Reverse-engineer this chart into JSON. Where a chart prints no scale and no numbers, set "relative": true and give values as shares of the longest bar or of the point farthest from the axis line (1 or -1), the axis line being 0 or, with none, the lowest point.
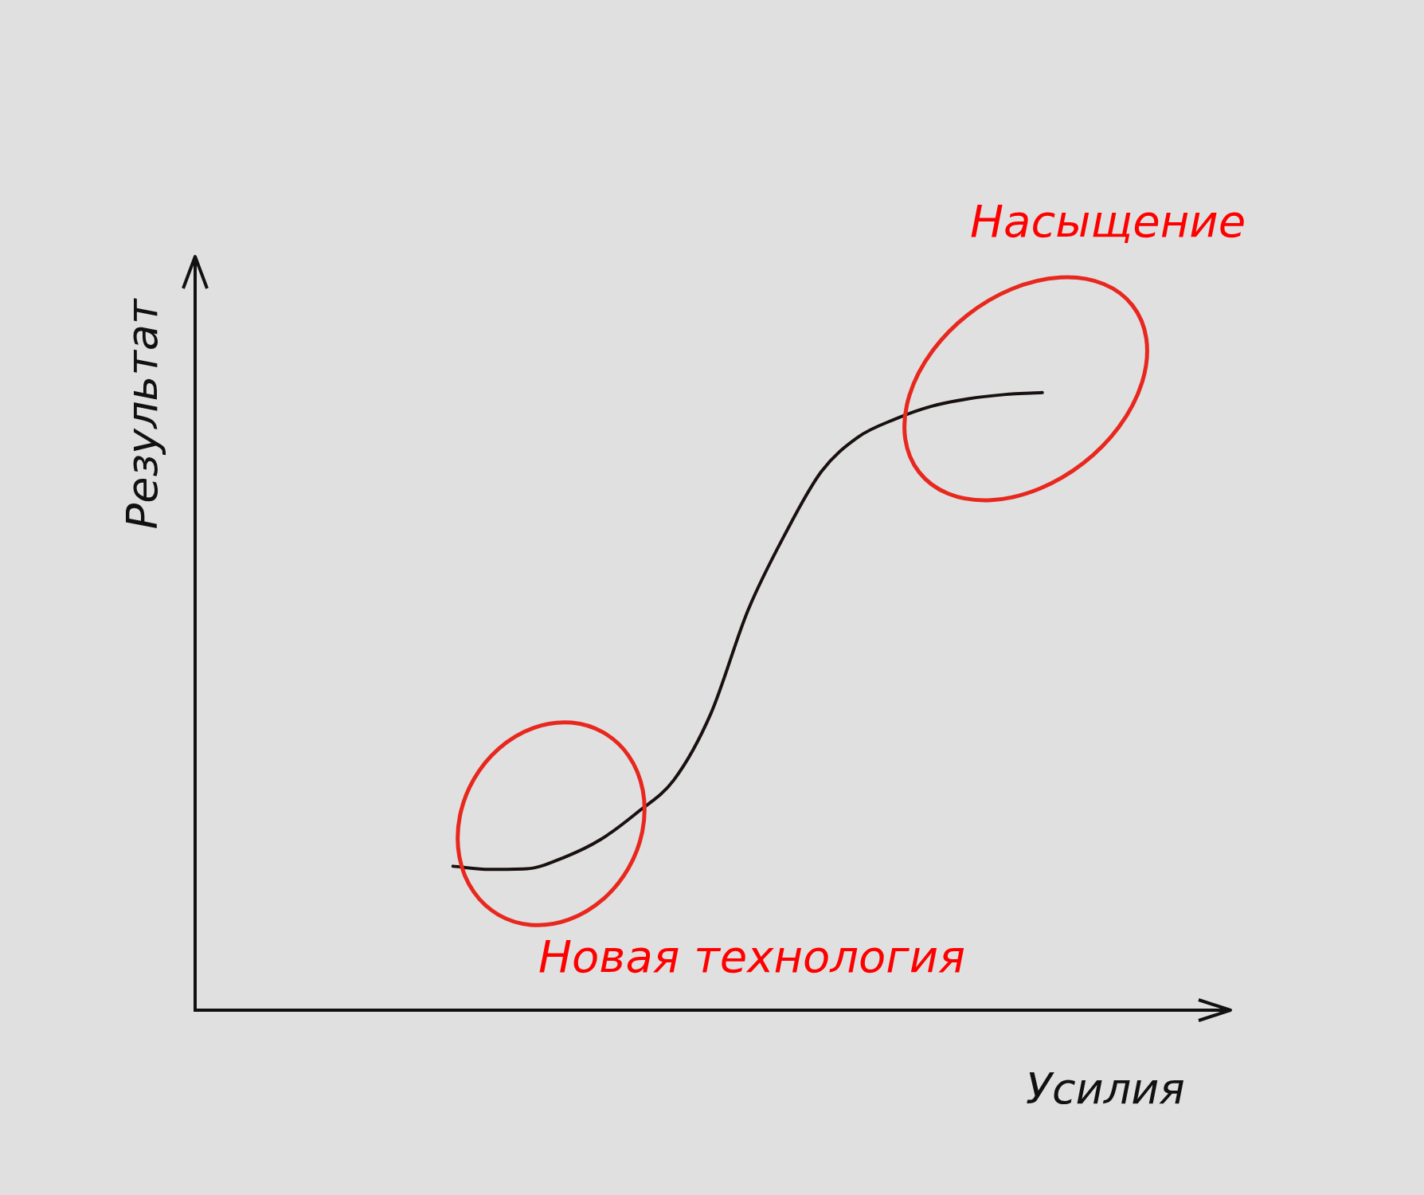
{
  "chart_data": {
    "type": "line",
    "relative": true,
    "xlabel": "Усилия",
    "ylabel": "Результат",
    "annotations": [
      "Насыщение",
      "Новая технология"
    ],
    "categories": [
      null,
      null,
      null,
      null,
      null,
      null,
      null,
      null,
      null,
      null,
      null,
      null,
      null,
      null,
      null,
      null,
      null,
      null,
      null,
      null,
      null,
      null,
      null,
      null,
      null,
      null,
      null,
      null,
      null
    ],
    "series": [
      {
        "color": "#1a1010",
        "values": [
          null,
          null,
          null,
          null,
          null,
          null,
          null,
          0.233,
          0.228,
          0.229,
          0.247,
          0.276,
          0.32,
          0.373,
          0.48,
          0.646,
          0.769,
          0.872,
          0.928,
          0.957,
          0.978,
          0.99,
          0.997,
          1,
          null,
          null,
          null,
          null,
          null
        ]
      }
    ],
    "legend": false,
    "marker": "none",
    "line_style": "solid"
  }
}
